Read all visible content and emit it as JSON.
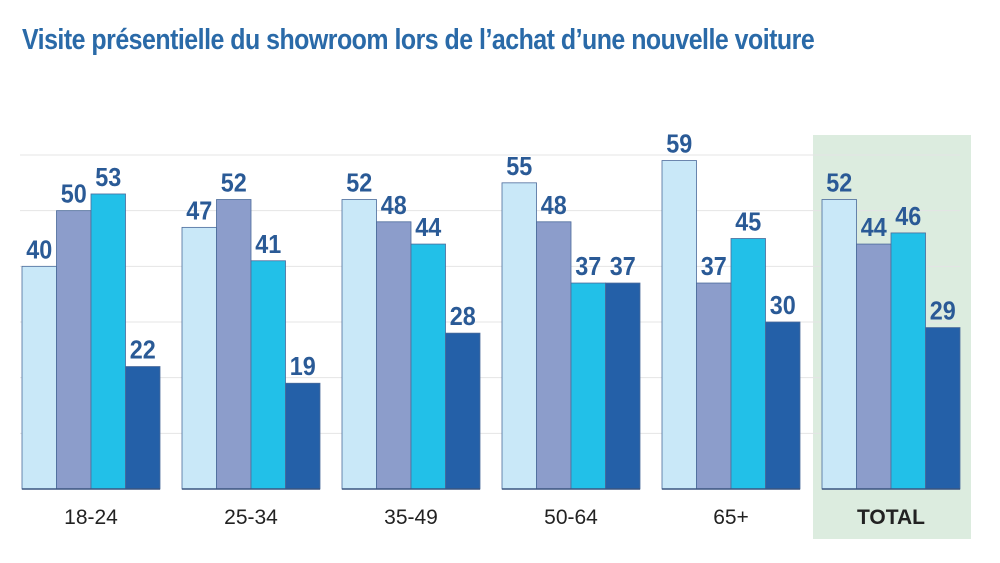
{
  "chart_data": {
    "type": "bar",
    "title": "Visite présentielle du showroom lors de l’achat d’une nouvelle voiture",
    "xlabel": "",
    "ylabel": "",
    "ylim": [
      0,
      60
    ],
    "grid": true,
    "legend": "none",
    "categories": [
      "18-24",
      "25-34",
      "35-49",
      "50-64",
      "65+",
      "TOTAL"
    ],
    "highlighted_category": "TOTAL",
    "series": [
      {
        "values": [
          40,
          47,
          52,
          55,
          59,
          52
        ],
        "color": "#c9e8f8"
      },
      {
        "values": [
          50,
          52,
          48,
          48,
          37,
          44
        ],
        "color": "#8c9dcb"
      },
      {
        "values": [
          53,
          41,
          44,
          37,
          45,
          46
        ],
        "color": "#22c0e8"
      },
      {
        "values": [
          22,
          19,
          28,
          37,
          30,
          29
        ],
        "color": "#2460a8"
      }
    ],
    "colors": {
      "title": "#2a6aa8",
      "value_label": "#2a5a96",
      "highlight_bg": "#dcecdf",
      "highlight_label": "#5aa878"
    }
  }
}
